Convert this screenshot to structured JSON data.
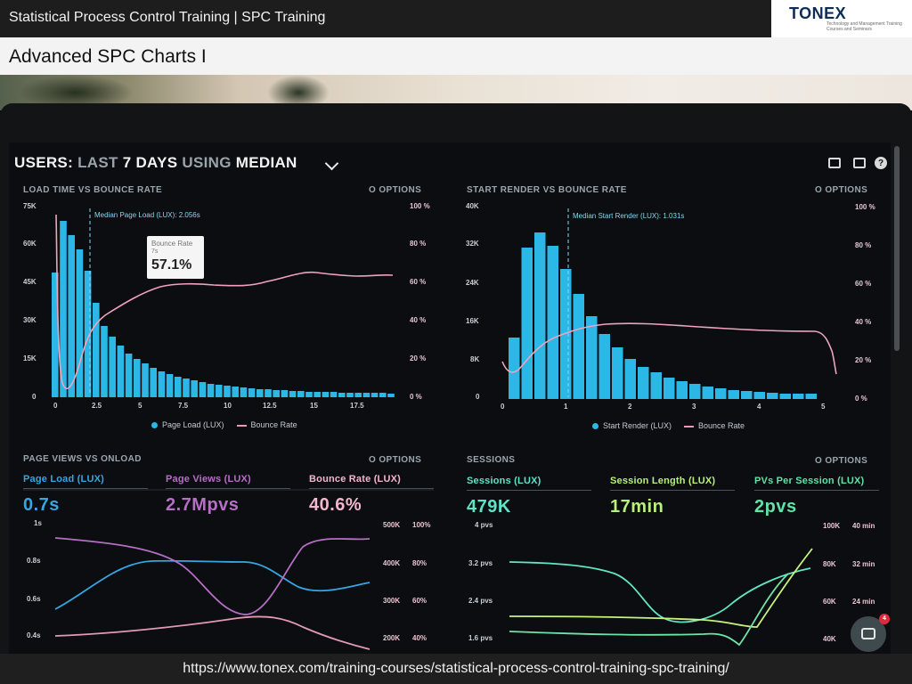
{
  "header": {
    "title": "Statistical Process Control Training | SPC Training",
    "logo_text": "TONEX",
    "logo_subtext": "Technology and Management Training Courses and Seminars",
    "slide_heading": "Advanced SPC Charts I"
  },
  "footer": {
    "url": "https://www.tonex.com/training-courses/statistical-process-control-training-spc-training/"
  },
  "dashboard": {
    "title_part1": "USERS:",
    "title_part2": "LAST",
    "title_part3": "7 DAYS",
    "title_part4": "USING",
    "title_part5": "MEDIAN",
    "icons": [
      "monitor-icon",
      "image-icon",
      "help-icon"
    ],
    "help_glyph": "?",
    "options_label": "O  OPTIONS"
  },
  "panels": {
    "load_time": {
      "title": "LOAD TIME VS BOUNCE RATE",
      "median_label": "Median Page Load (LUX): 2.056s",
      "y_left": [
        "75K",
        "60K",
        "45K",
        "30K",
        "15K",
        "0"
      ],
      "y_right": [
        "100 %",
        "80 %",
        "60 %",
        "40 %",
        "20 %",
        "0 %"
      ],
      "x_ticks": [
        "0",
        "2.5",
        "5",
        "7.5",
        "10",
        "12.5",
        "15",
        "17.5"
      ],
      "legend_bars": "Page Load (LUX)",
      "legend_line": "Bounce Rate",
      "tooltip_title": "Bounce Rate",
      "tooltip_sub": "7s",
      "tooltip_value": "57.1%"
    },
    "start_render": {
      "title": "START RENDER VS BOUNCE RATE",
      "median_label": "Median Start Render (LUX): 1.031s",
      "y_left": [
        "40K",
        "32K",
        "24K",
        "16K",
        "8K",
        "0"
      ],
      "y_right": [
        "100 %",
        "80 %",
        "60 %",
        "40 %",
        "20 %",
        "0 %"
      ],
      "x_ticks": [
        "0",
        "1",
        "2",
        "3",
        "4",
        "5"
      ],
      "legend_bars": "Start Render (LUX)",
      "legend_line": "Bounce Rate"
    },
    "page_views": {
      "title": "PAGE VIEWS VS ONLOAD",
      "metrics": [
        {
          "label": "Page Load (LUX)",
          "value": "0.7s",
          "color": "#36a6e3"
        },
        {
          "label": "Page Views (LUX)",
          "value": "2.7Mpvs",
          "color": "#b56fc4"
        },
        {
          "label": "Bounce Rate (LUX)",
          "value": "40.6%",
          "color": "#f3b6cc"
        }
      ],
      "y_left": [
        "1s",
        "0.8s",
        "0.6s",
        "0.4s"
      ],
      "y_right_a": [
        "500K",
        "400K",
        "300K",
        "200K"
      ],
      "y_right_b": [
        "100%",
        "80%",
        "60%",
        "40%"
      ]
    },
    "sessions": {
      "title": "SESSIONS",
      "metrics": [
        {
          "label": "Sessions (LUX)",
          "value": "479K",
          "color": "#5fe3c8"
        },
        {
          "label": "Session Length (LUX)",
          "value": "17min",
          "color": "#b7f07a"
        },
        {
          "label": "PVs Per Session (LUX)",
          "value": "2pvs",
          "color": "#5fe3a8"
        }
      ],
      "y_left": [
        "4 pvs",
        "3.2 pvs",
        "2.4 pvs",
        "1.6 pvs"
      ],
      "y_right_a": [
        "100K",
        "80K",
        "60K",
        "40K"
      ],
      "y_right_b": [
        "40 min",
        "32 min",
        "24 min"
      ]
    }
  },
  "chat": {
    "badge_count": "4"
  },
  "colors": {
    "bar": "#2bb8e6",
    "bounce_line": "#f0a3bd",
    "page_load_line": "#36a6e3",
    "page_views_line": "#b56fc4",
    "bounce_line_b": "#e29ab5",
    "sessions_line": "#63e6c6",
    "session_length_line": "#c7f27e",
    "pvs_line": "#6fe4a8"
  }
}
